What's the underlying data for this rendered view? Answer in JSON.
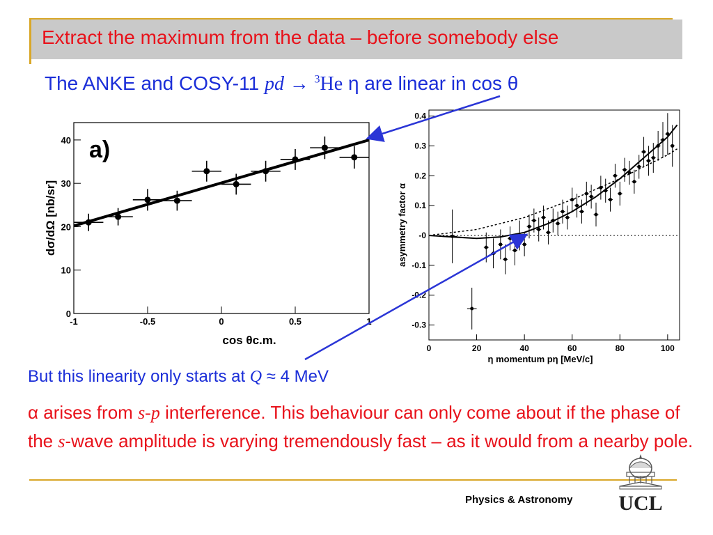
{
  "slide": {
    "title": "Extract the maximum from the data – before somebody else",
    "subtitle_pre": "The ANKE and COSY-11 ",
    "subtitle_reaction_pd": "pd",
    "subtitle_arrow": " → ",
    "subtitle_sup": "3",
    "subtitle_he": "He",
    "subtitle_eta": " η",
    "subtitle_post": " are linear in cos θ",
    "line1_pre": "But this linearity only starts at ",
    "line1_q": "Q",
    "line1_post": " ≈ 4 MeV",
    "para_alpha": "α",
    "para_1": " arises from ",
    "para_sp": "s-p",
    "para_2": " interference. This behaviour can only come about if the phase of the ",
    "para_s": "s",
    "para_3": "-wave amplitude is varying tremendously fast – as it would from a nearby pole.",
    "footer": "Physics & Astronomy",
    "logo_text": "UCL"
  },
  "colors": {
    "title_red": "#e8121b",
    "text_blue": "#1b2ed8",
    "rule_gold": "#d9a728",
    "title_bg": "#c9c9c9"
  },
  "chart_data": [
    {
      "type": "scatter",
      "panel_label": "a)",
      "xlabel": "cos θc.m.",
      "ylabel": "dσ/dΩ [nb/sr]",
      "xlim": [
        -1,
        1
      ],
      "ylim": [
        0,
        44
      ],
      "x_ticks": [
        "-1",
        "-0.5",
        "0",
        "0.5",
        "1"
      ],
      "y_ticks": [
        "0",
        "10",
        "20",
        "30",
        "40"
      ],
      "points": [
        {
          "x": -0.9,
          "y": 21.0,
          "xerr": 0.1,
          "yerr": 2.0
        },
        {
          "x": -0.7,
          "y": 22.3,
          "xerr": 0.1,
          "yerr": 2.0
        },
        {
          "x": -0.5,
          "y": 26.2,
          "xerr": 0.1,
          "yerr": 2.5
        },
        {
          "x": -0.3,
          "y": 26.0,
          "xerr": 0.1,
          "yerr": 2.3
        },
        {
          "x": -0.1,
          "y": 32.8,
          "xerr": 0.1,
          "yerr": 2.4
        },
        {
          "x": 0.1,
          "y": 29.8,
          "xerr": 0.1,
          "yerr": 2.4
        },
        {
          "x": 0.3,
          "y": 32.8,
          "xerr": 0.1,
          "yerr": 2.4
        },
        {
          "x": 0.5,
          "y": 35.5,
          "xerr": 0.1,
          "yerr": 2.4
        },
        {
          "x": 0.7,
          "y": 38.2,
          "xerr": 0.1,
          "yerr": 2.6
        },
        {
          "x": 0.9,
          "y": 36.0,
          "xerr": 0.1,
          "yerr": 2.6
        }
      ],
      "fit_line": {
        "x": [
          -1,
          1
        ],
        "y": [
          20.2,
          40.0
        ]
      }
    },
    {
      "type": "scatter",
      "xlabel": "η momentum pη [MeV/c]",
      "ylabel": "asymmetry factor α",
      "xlim": [
        0,
        105
      ],
      "ylim": [
        -0.35,
        0.42
      ],
      "x_ticks": [
        "0",
        "20",
        "40",
        "60",
        "80",
        "100"
      ],
      "y_ticks": [
        "-0.3",
        "-0.2",
        "-0.1",
        "-0",
        "0.1",
        "0.2",
        "0.3",
        "0.4"
      ],
      "points": [
        {
          "x": 9.8,
          "y": -0.003,
          "xerr": 2.0,
          "yerr": 0.09
        },
        {
          "x": 18.0,
          "y": -0.245,
          "xerr": 2.0,
          "yerr": 0.07
        },
        {
          "x": 24,
          "y": -0.04,
          "xerr": 1.0,
          "yerr": 0.05
        },
        {
          "x": 27,
          "y": -0.06,
          "xerr": 1.0,
          "yerr": 0.05
        },
        {
          "x": 30,
          "y": -0.03,
          "xerr": 1.0,
          "yerr": 0.05
        },
        {
          "x": 32,
          "y": -0.08,
          "xerr": 1.0,
          "yerr": 0.05
        },
        {
          "x": 34,
          "y": -0.01,
          "xerr": 1.0,
          "yerr": 0.04
        },
        {
          "x": 36,
          "y": -0.05,
          "xerr": 1.0,
          "yerr": 0.05
        },
        {
          "x": 38,
          "y": 0.0,
          "xerr": 1.0,
          "yerr": 0.05
        },
        {
          "x": 40,
          "y": -0.03,
          "xerr": 1.0,
          "yerr": 0.04
        },
        {
          "x": 42,
          "y": 0.03,
          "xerr": 1.0,
          "yerr": 0.04
        },
        {
          "x": 44,
          "y": 0.05,
          "xerr": 1.0,
          "yerr": 0.04
        },
        {
          "x": 46,
          "y": 0.02,
          "xerr": 1.0,
          "yerr": 0.04
        },
        {
          "x": 48,
          "y": 0.06,
          "xerr": 1.0,
          "yerr": 0.04
        },
        {
          "x": 50,
          "y": 0.01,
          "xerr": 1.0,
          "yerr": 0.04
        },
        {
          "x": 52,
          "y": 0.05,
          "xerr": 1.0,
          "yerr": 0.04
        },
        {
          "x": 54,
          "y": 0.04,
          "xerr": 1.0,
          "yerr": 0.04
        },
        {
          "x": 56,
          "y": 0.08,
          "xerr": 1.0,
          "yerr": 0.04
        },
        {
          "x": 58,
          "y": 0.06,
          "xerr": 1.0,
          "yerr": 0.04
        },
        {
          "x": 60,
          "y": 0.12,
          "xerr": 1.0,
          "yerr": 0.04
        },
        {
          "x": 62,
          "y": 0.1,
          "xerr": 1.0,
          "yerr": 0.04
        },
        {
          "x": 64,
          "y": 0.08,
          "xerr": 1.0,
          "yerr": 0.04
        },
        {
          "x": 66,
          "y": 0.14,
          "xerr": 1.0,
          "yerr": 0.04
        },
        {
          "x": 68,
          "y": 0.13,
          "xerr": 1.0,
          "yerr": 0.04
        },
        {
          "x": 70,
          "y": 0.07,
          "xerr": 1.0,
          "yerr": 0.04
        },
        {
          "x": 72,
          "y": 0.16,
          "xerr": 1.0,
          "yerr": 0.04
        },
        {
          "x": 74,
          "y": 0.15,
          "xerr": 1.0,
          "yerr": 0.04
        },
        {
          "x": 76,
          "y": 0.12,
          "xerr": 1.0,
          "yerr": 0.04
        },
        {
          "x": 78,
          "y": 0.2,
          "xerr": 1.0,
          "yerr": 0.04
        },
        {
          "x": 80,
          "y": 0.14,
          "xerr": 1.0,
          "yerr": 0.04
        },
        {
          "x": 82,
          "y": 0.22,
          "xerr": 1.0,
          "yerr": 0.04
        },
        {
          "x": 84,
          "y": 0.21,
          "xerr": 1.0,
          "yerr": 0.04
        },
        {
          "x": 86,
          "y": 0.18,
          "xerr": 1.0,
          "yerr": 0.04
        },
        {
          "x": 88,
          "y": 0.23,
          "xerr": 1.0,
          "yerr": 0.04
        },
        {
          "x": 90,
          "y": 0.28,
          "xerr": 1.0,
          "yerr": 0.05
        },
        {
          "x": 92,
          "y": 0.25,
          "xerr": 1.0,
          "yerr": 0.05
        },
        {
          "x": 94,
          "y": 0.26,
          "xerr": 1.0,
          "yerr": 0.05
        },
        {
          "x": 96,
          "y": 0.3,
          "xerr": 1.0,
          "yerr": 0.05
        },
        {
          "x": 98,
          "y": 0.32,
          "xerr": 1.0,
          "yerr": 0.06
        },
        {
          "x": 100,
          "y": 0.34,
          "xerr": 1.0,
          "yerr": 0.07
        },
        {
          "x": 102,
          "y": 0.3,
          "xerr": 1.0,
          "yerr": 0.07
        }
      ],
      "solid_curve": {
        "x": [
          0,
          20,
          30,
          40,
          50,
          60,
          70,
          80,
          90,
          100,
          104
        ],
        "y": [
          0.0,
          -0.01,
          -0.005,
          0.01,
          0.04,
          0.08,
          0.13,
          0.19,
          0.26,
          0.33,
          0.37
        ]
      },
      "dotted_curve": {
        "x": [
          0,
          20,
          40,
          60,
          80,
          100,
          104
        ],
        "y": [
          0.0,
          0.02,
          0.06,
          0.12,
          0.19,
          0.27,
          0.29
        ]
      },
      "zero_line": 0
    }
  ]
}
